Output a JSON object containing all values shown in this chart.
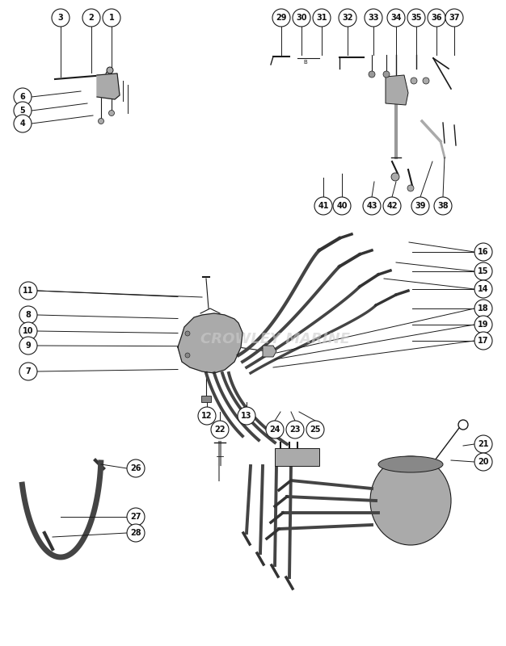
{
  "bg_color": "#ffffff",
  "line_color": "#1a1a1a",
  "part_color": "#888888",
  "wire_color": "#555555",
  "circle_bg": "#ffffff",
  "circle_edge": "#1a1a1a",
  "text_color": "#111111",
  "watermark": "CROWLEY MARINE",
  "watermark_color": "#cccccc",
  "figsize": [
    6.26,
    8.0
  ],
  "dpi": 100
}
